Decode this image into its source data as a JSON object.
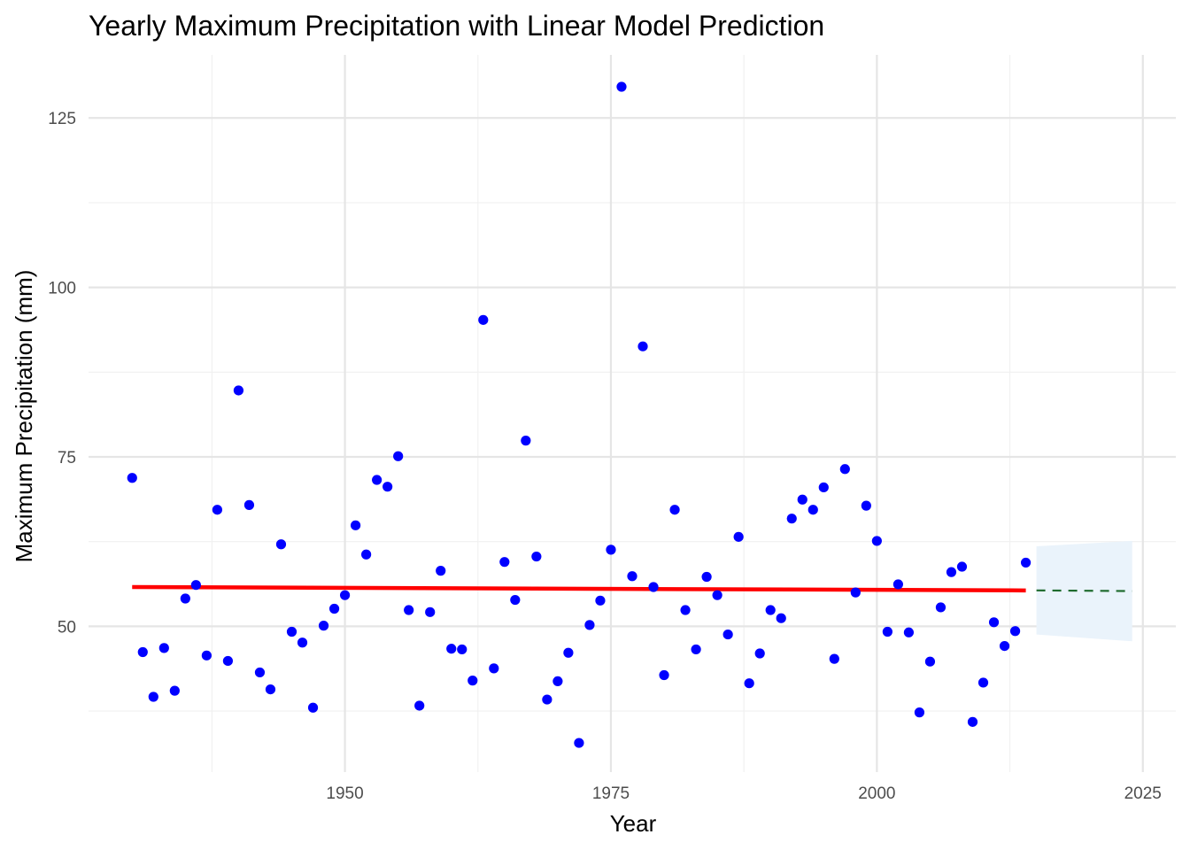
{
  "chart_data": {
    "type": "scatter",
    "title": "Yearly Maximum Precipitation with Linear Model Prediction",
    "xlabel": "Year",
    "ylabel": "Maximum Precipitation (mm)",
    "xlim": [
      1925.9,
      2028.1
    ],
    "ylim": [
      28.5,
      134.3
    ],
    "x_ticks": [
      1950,
      1975,
      2000,
      2025
    ],
    "y_ticks": [
      50,
      75,
      100,
      125
    ],
    "grid": true,
    "legend": "none",
    "series": [
      {
        "type": "scatter",
        "color": "#0000ff",
        "points": [
          [
            1930,
            71.9
          ],
          [
            1931,
            46.2
          ],
          [
            1932,
            39.6
          ],
          [
            1933,
            46.8
          ],
          [
            1934,
            40.5
          ],
          [
            1935,
            54.1
          ],
          [
            1936,
            56.1
          ],
          [
            1937,
            45.7
          ],
          [
            1938,
            67.2
          ],
          [
            1939,
            44.9
          ],
          [
            1940,
            84.8
          ],
          [
            1941,
            67.9
          ],
          [
            1942,
            43.2
          ],
          [
            1943,
            40.7
          ],
          [
            1944,
            62.1
          ],
          [
            1945,
            49.2
          ],
          [
            1946,
            47.6
          ],
          [
            1947,
            38.0
          ],
          [
            1948,
            50.1
          ],
          [
            1949,
            52.6
          ],
          [
            1950,
            54.6
          ],
          [
            1951,
            64.9
          ],
          [
            1952,
            60.6
          ],
          [
            1953,
            71.6
          ],
          [
            1954,
            70.6
          ],
          [
            1955,
            75.1
          ],
          [
            1956,
            52.4
          ],
          [
            1957,
            38.3
          ],
          [
            1958,
            52.1
          ],
          [
            1959,
            58.2
          ],
          [
            1960,
            46.7
          ],
          [
            1961,
            46.6
          ],
          [
            1962,
            42.0
          ],
          [
            1963,
            95.2
          ],
          [
            1964,
            43.8
          ],
          [
            1965,
            59.5
          ],
          [
            1966,
            53.9
          ],
          [
            1967,
            77.4
          ],
          [
            1968,
            60.3
          ],
          [
            1969,
            39.2
          ],
          [
            1970,
            41.9
          ],
          [
            1971,
            46.1
          ],
          [
            1972,
            32.8
          ],
          [
            1973,
            50.2
          ],
          [
            1974,
            53.8
          ],
          [
            1975,
            61.3
          ],
          [
            1976,
            129.6
          ],
          [
            1977,
            57.4
          ],
          [
            1978,
            91.3
          ],
          [
            1979,
            55.8
          ],
          [
            1980,
            42.8
          ],
          [
            1981,
            67.2
          ],
          [
            1982,
            52.4
          ],
          [
            1983,
            46.6
          ],
          [
            1984,
            57.3
          ],
          [
            1985,
            54.6
          ],
          [
            1986,
            48.8
          ],
          [
            1987,
            63.2
          ],
          [
            1988,
            41.6
          ],
          [
            1989,
            46.0
          ],
          [
            1990,
            52.4
          ],
          [
            1991,
            51.2
          ],
          [
            1992,
            65.9
          ],
          [
            1993,
            68.7
          ],
          [
            1994,
            67.2
          ],
          [
            1995,
            70.5
          ],
          [
            1996,
            45.2
          ],
          [
            1997,
            73.2
          ],
          [
            1998,
            55.0
          ],
          [
            1999,
            67.8
          ],
          [
            2000,
            62.6
          ],
          [
            2001,
            49.2
          ],
          [
            2002,
            56.2
          ],
          [
            2003,
            49.1
          ],
          [
            2004,
            37.3
          ],
          [
            2005,
            44.8
          ],
          [
            2006,
            52.8
          ],
          [
            2007,
            58.0
          ],
          [
            2008,
            58.8
          ],
          [
            2009,
            35.9
          ],
          [
            2010,
            41.7
          ],
          [
            2011,
            50.6
          ],
          [
            2012,
            47.1
          ],
          [
            2013,
            49.3
          ],
          [
            2014,
            59.4
          ]
        ]
      },
      {
        "type": "line",
        "color": "#ff0000",
        "style": "solid",
        "points": [
          [
            1930,
            55.8
          ],
          [
            2014,
            55.3
          ]
        ]
      },
      {
        "type": "band",
        "color": "#eaf3fb",
        "x": [
          2015,
          2024
        ],
        "upper": [
          61.8,
          62.6
        ],
        "lower": [
          48.8,
          47.8
        ]
      },
      {
        "type": "line",
        "color": "#1f6b2e",
        "style": "dashed",
        "points": [
          [
            2015,
            55.3
          ],
          [
            2024,
            55.2
          ]
        ]
      }
    ]
  }
}
